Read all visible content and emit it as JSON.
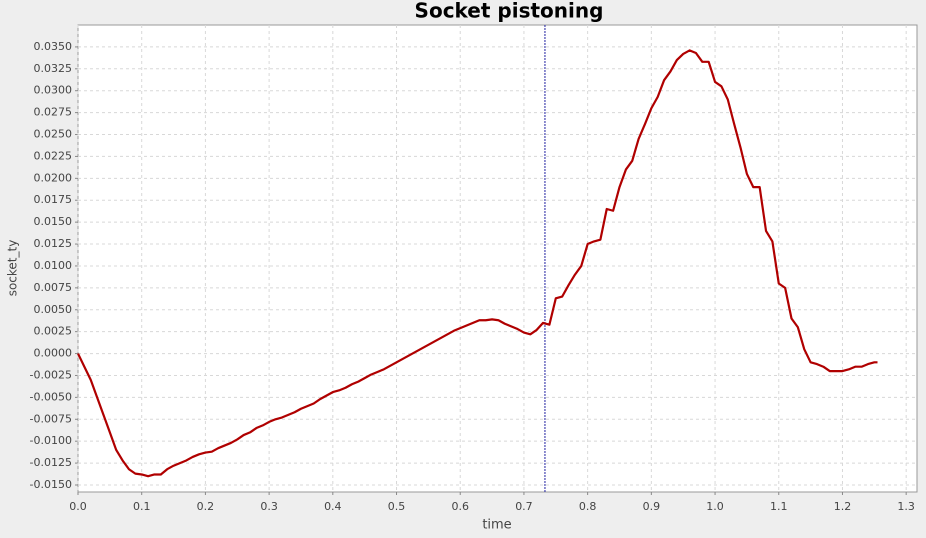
{
  "chart_data": {
    "type": "line",
    "title": "Socket pistoning",
    "x_label": "time",
    "y_label": "socket_ty",
    "x": [
      0.0,
      0.01,
      0.02,
      0.03,
      0.04,
      0.05,
      0.06,
      0.07,
      0.08,
      0.09,
      0.1,
      0.11,
      0.12,
      0.13,
      0.14,
      0.15,
      0.16,
      0.17,
      0.18,
      0.19,
      0.2,
      0.21,
      0.22,
      0.23,
      0.24,
      0.25,
      0.26,
      0.27,
      0.28,
      0.29,
      0.3,
      0.31,
      0.32,
      0.33,
      0.34,
      0.35,
      0.36,
      0.37,
      0.38,
      0.39,
      0.4,
      0.41,
      0.42,
      0.43,
      0.44,
      0.45,
      0.46,
      0.47,
      0.48,
      0.49,
      0.5,
      0.51,
      0.52,
      0.53,
      0.54,
      0.55,
      0.56,
      0.57,
      0.58,
      0.59,
      0.6,
      0.61,
      0.62,
      0.63,
      0.64,
      0.65,
      0.66,
      0.67,
      0.68,
      0.69,
      0.7,
      0.71,
      0.72,
      0.73,
      0.74,
      0.75,
      0.76,
      0.77,
      0.78,
      0.79,
      0.8,
      0.81,
      0.82,
      0.83,
      0.84,
      0.85,
      0.86,
      0.87,
      0.88,
      0.89,
      0.9,
      0.91,
      0.92,
      0.93,
      0.94,
      0.95,
      0.96,
      0.97,
      0.98,
      0.99,
      1.0,
      1.01,
      1.02,
      1.03,
      1.04,
      1.05,
      1.06,
      1.07,
      1.08,
      1.09,
      1.1,
      1.11,
      1.12,
      1.13,
      1.14,
      1.15,
      1.16,
      1.17,
      1.18,
      1.19,
      1.2,
      1.21,
      1.22,
      1.23,
      1.24,
      1.25,
      1.255
    ],
    "series": [
      {
        "name": "socket_ty",
        "color": "#b00000",
        "values": [
          0.0,
          -0.0015,
          -0.003,
          -0.005,
          -0.007,
          -0.009,
          -0.011,
          -0.0122,
          -0.0132,
          -0.0137,
          -0.0138,
          -0.014,
          -0.0138,
          -0.0138,
          -0.0132,
          -0.0128,
          -0.0125,
          -0.0122,
          -0.0118,
          -0.0115,
          -0.0113,
          -0.0112,
          -0.0108,
          -0.0105,
          -0.0102,
          -0.0098,
          -0.0093,
          -0.009,
          -0.0085,
          -0.0082,
          -0.0078,
          -0.0075,
          -0.0073,
          -0.007,
          -0.0067,
          -0.0063,
          -0.006,
          -0.0057,
          -0.0052,
          -0.0048,
          -0.0044,
          -0.0042,
          -0.0039,
          -0.0035,
          -0.0032,
          -0.0028,
          -0.0024,
          -0.0021,
          -0.0018,
          -0.0014,
          -0.001,
          -0.0006,
          -0.0002,
          0.0002,
          0.0006,
          0.001,
          0.0014,
          0.0018,
          0.0022,
          0.0026,
          0.0029,
          0.0032,
          0.0035,
          0.0038,
          0.0038,
          0.0039,
          0.0038,
          0.0034,
          0.0031,
          0.0028,
          0.0024,
          0.0022,
          0.0027,
          0.0035,
          0.0033,
          0.0063,
          0.0065,
          0.0078,
          0.009,
          0.01,
          0.0125,
          0.0128,
          0.013,
          0.0165,
          0.0163,
          0.019,
          0.021,
          0.022,
          0.0245,
          0.0262,
          0.028,
          0.0293,
          0.0312,
          0.0322,
          0.0335,
          0.0342,
          0.0346,
          0.0343,
          0.0333,
          0.0333,
          0.031,
          0.0305,
          0.029,
          0.0262,
          0.0235,
          0.0205,
          0.019,
          0.019,
          0.014,
          0.0128,
          0.008,
          0.0075,
          0.004,
          0.003,
          0.0005,
          -0.001,
          -0.0012,
          -0.0015,
          -0.002,
          -0.002,
          -0.002,
          -0.0018,
          -0.0015,
          -0.0015,
          -0.0012,
          -0.001,
          -0.001
        ]
      }
    ],
    "crosshair_x": 0.733,
    "xlim": [
      0,
      1.317
    ],
    "ylim": [
      -0.0158,
      0.0375
    ],
    "xticks": [
      {
        "value": 0,
        "label": "0.0"
      },
      0.1,
      0.2,
      0.3,
      0.4,
      0.5,
      0.6,
      0.7,
      0.8,
      0.9,
      {
        "value": 1,
        "label": "1.0"
      },
      1.1,
      1.2,
      1.3
    ],
    "yticks": [
      {
        "value": 0.035,
        "label": "0.0350"
      },
      {
        "value": 0.0325,
        "label": "0.0325"
      },
      {
        "value": 0.03,
        "label": "0.0300"
      },
      {
        "value": 0.0275,
        "label": "0.0275"
      },
      {
        "value": 0.025,
        "label": "0.0250"
      },
      {
        "value": 0.0225,
        "label": "0.0225"
      },
      {
        "value": 0.02,
        "label": "0.0200"
      },
      {
        "value": 0.0175,
        "label": "0.0175"
      },
      {
        "value": 0.015,
        "label": "0.0150"
      },
      {
        "value": 0.0125,
        "label": "0.0125"
      },
      {
        "value": 0.01,
        "label": "0.0100"
      },
      {
        "value": 0.0075,
        "label": "0.0075"
      },
      {
        "value": 0.005,
        "label": "0.0050"
      },
      {
        "value": 0.0025,
        "label": "0.0025"
      },
      {
        "value": 0,
        "label": "0.0000"
      },
      {
        "value": -0.0025,
        "label": "-0.0025"
      },
      {
        "value": -0.005,
        "label": "-0.0050"
      },
      {
        "value": -0.0075,
        "label": "-0.0075"
      },
      {
        "value": -0.01,
        "label": "-0.0100"
      },
      {
        "value": -0.0125,
        "label": "-0.0125"
      },
      {
        "value": -0.015,
        "label": "-0.0150"
      }
    ],
    "grid": true
  }
}
